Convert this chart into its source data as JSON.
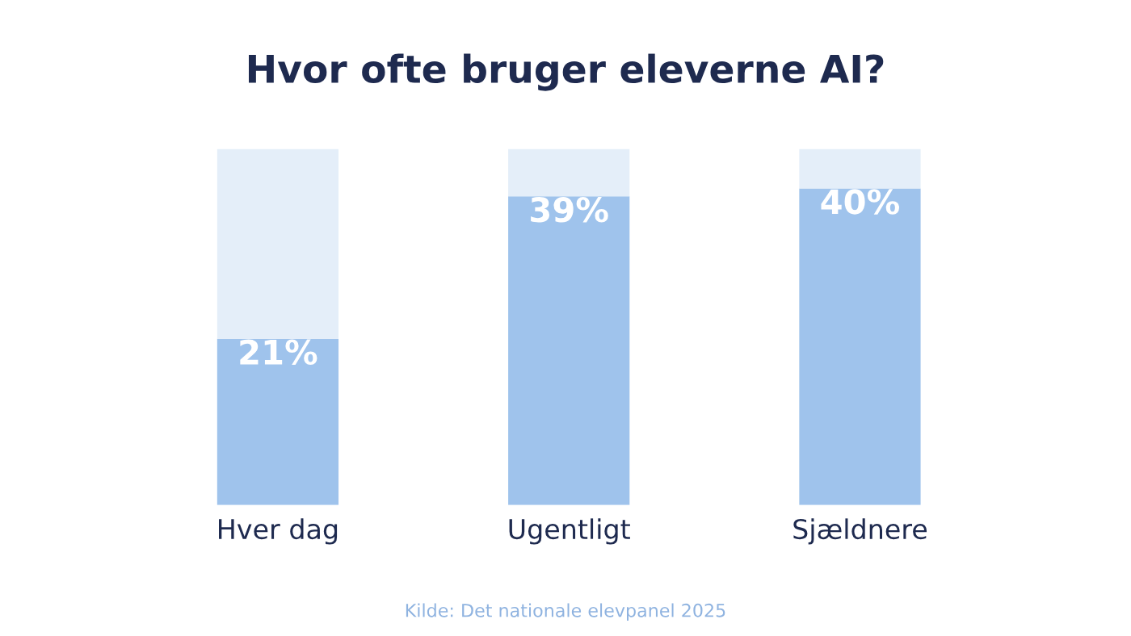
{
  "chart_data": {
    "type": "bar",
    "title": "Hvor ofte bruger eleverne AI?",
    "categories": [
      "Hver dag",
      "Ugentligt",
      "Sjældnere"
    ],
    "stacked": true,
    "series": [
      {
        "color": "#9fc3ec",
        "values": [
          21,
          39,
          40
        ],
        "value_labels": [
          "21%",
          "39%",
          "40%"
        ]
      },
      {
        "color": "#e4eef9",
        "values": [
          24,
          6,
          5
        ]
      }
    ],
    "annotations": [
      "Kilde: Det nationale elevpanel 2025"
    ]
  }
}
